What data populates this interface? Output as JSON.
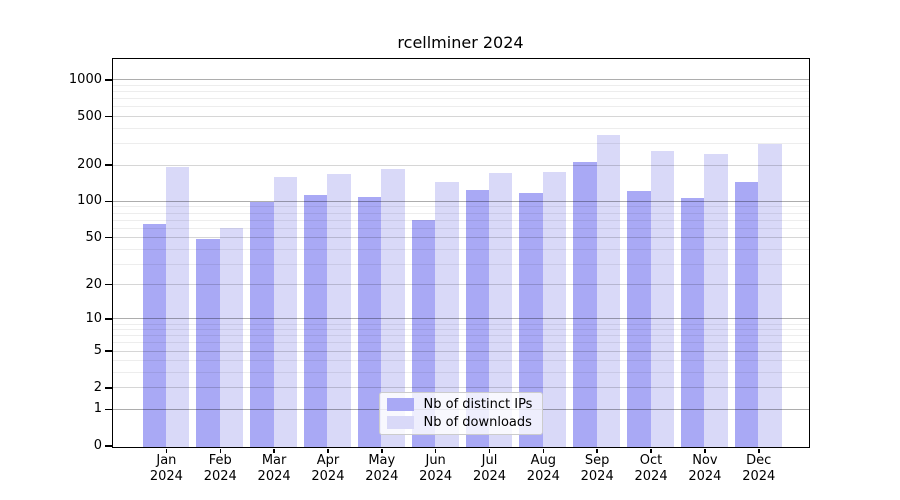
{
  "figure": {
    "title": "rcellminer 2024"
  },
  "colors": {
    "bar_ips": "#a9a9f5",
    "bar_downloads": "#d9d9f8",
    "grid_decade": "rgba(0,0,0,0.32)",
    "grid_submajor": "rgba(0,0,0,0.16)",
    "grid_minor": "rgba(0,0,0,0.07)",
    "spine": "#000000",
    "legend_border": "#cccccc"
  },
  "y_axis": {
    "tick_values": [
      1000,
      500,
      200,
      100,
      50,
      20,
      10,
      5,
      2,
      1,
      0
    ]
  },
  "x_axis": {
    "months": [
      "Jan",
      "Feb",
      "Mar",
      "Apr",
      "May",
      "Jun",
      "Jul",
      "Aug",
      "Sep",
      "Oct",
      "Nov",
      "Dec"
    ],
    "year_label": "2024"
  },
  "legend": {
    "items": [
      {
        "label": "Nb of distinct IPs",
        "color": "#a9a9f5"
      },
      {
        "label": "Nb of downloads",
        "color": "#d9d9f8"
      }
    ]
  },
  "chart_data": {
    "type": "bar",
    "title": "rcellminer 2024",
    "categories": [
      "Jan 2024",
      "Feb 2024",
      "Mar 2024",
      "Apr 2024",
      "May 2024",
      "Jun 2024",
      "Jul 2024",
      "Aug 2024",
      "Sep 2024",
      "Oct 2024",
      "Nov 2024",
      "Dec 2024"
    ],
    "series": [
      {
        "name": "Nb of distinct IPs",
        "values": [
          65,
          48,
          99,
          112,
          107,
          69,
          124,
          116,
          211,
          122,
          105,
          143
        ]
      },
      {
        "name": "Nb of downloads",
        "values": [
          190,
          60,
          157,
          168,
          185,
          143,
          170,
          172,
          350,
          259,
          244,
          295
        ]
      }
    ],
    "y_scale": "log10(value+1)",
    "y_ticks": [
      0,
      1,
      2,
      5,
      10,
      20,
      50,
      100,
      200,
      500,
      1000
    ],
    "ylim": [
      0,
      1480
    ],
    "grid": "horizontal major + minor, drawn over bars",
    "legend_position": "lower center inside plot"
  }
}
